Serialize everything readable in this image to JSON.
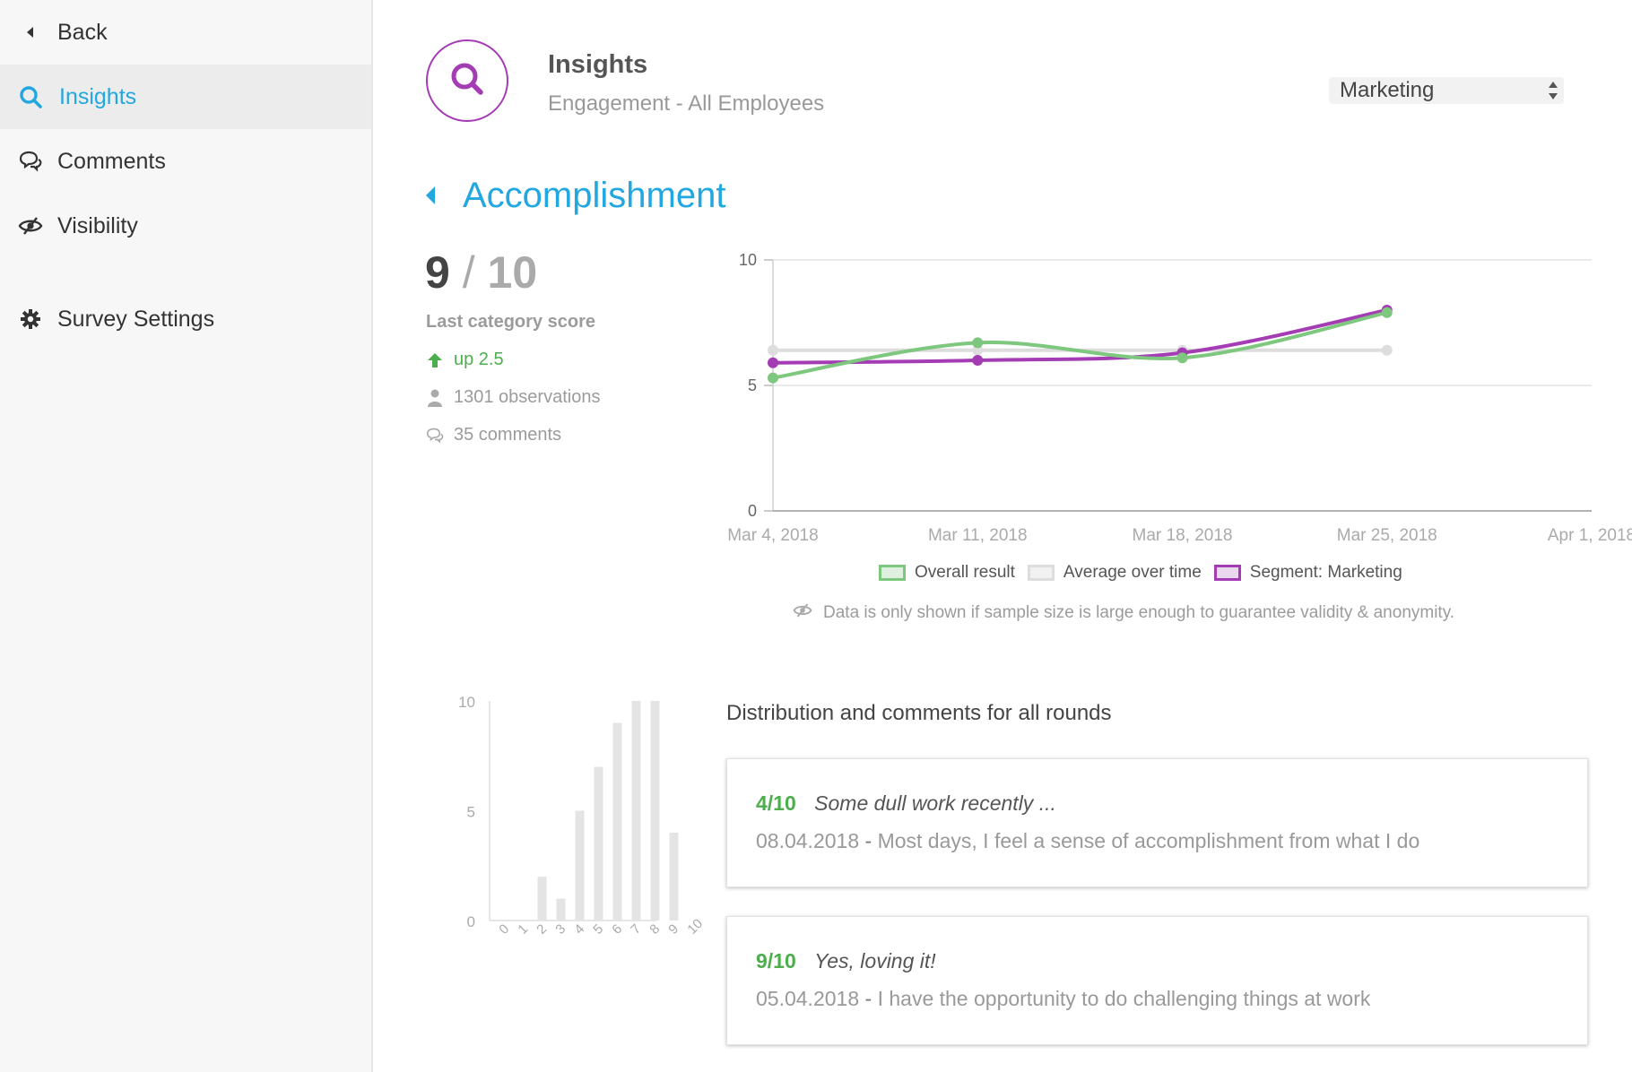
{
  "sidebar": {
    "back_label": "Back",
    "items": [
      {
        "label": "Insights",
        "icon": "search-icon",
        "active": true
      },
      {
        "label": "Comments",
        "icon": "comments-icon",
        "active": false
      },
      {
        "label": "Visibility",
        "icon": "eye-slash-icon",
        "active": false
      },
      {
        "label": "Survey Settings",
        "icon": "gear-icon",
        "active": false
      }
    ]
  },
  "header": {
    "title": "Insights",
    "subtitle": "Engagement - All Employees",
    "segment_select": {
      "selected": "Marketing"
    }
  },
  "section": {
    "title": "Accomplishment"
  },
  "score": {
    "value": "9",
    "slash": "/",
    "max": "10",
    "label": "Last category score",
    "trend": "up 2.5",
    "observations": "1301 observations",
    "comments": "35 comments"
  },
  "colors": {
    "accent": "#22a7e0",
    "purple": "#a43cb4",
    "green": "#7dc77e",
    "grey": "#dddddd",
    "positive": "#4cae4c"
  },
  "chart_data": [
    {
      "type": "line",
      "x": [
        "Mar 4, 2018",
        "Mar 11, 2018",
        "Mar 18, 2018",
        "Mar 25, 2018",
        "Apr 1, 2018"
      ],
      "ylim": [
        0,
        10
      ],
      "yticks": [
        0,
        5,
        10
      ],
      "series": [
        {
          "name": "Overall result",
          "values": [
            5.3,
            6.7,
            6.1,
            7.9,
            null
          ]
        },
        {
          "name": "Average over time",
          "values": [
            6.4,
            6.4,
            6.4,
            6.4,
            null
          ]
        },
        {
          "name": "Segment: Marketing",
          "values": [
            5.9,
            6.0,
            6.3,
            8.0,
            null
          ]
        }
      ],
      "legend": [
        "Overall result",
        "Average over time",
        "Segment: Marketing"
      ],
      "grid": true,
      "legend_position": "bottom"
    },
    {
      "type": "bar",
      "categories": [
        "0",
        "1",
        "2",
        "3",
        "4",
        "5",
        "6",
        "7",
        "8",
        "9",
        "10"
      ],
      "values": [
        0,
        0,
        2,
        1,
        5,
        7,
        9,
        10,
        10,
        4,
        0
      ],
      "ylim": [
        0,
        10
      ],
      "yticks": [
        0,
        5,
        10
      ]
    }
  ],
  "legend_labels": {
    "overall": "Overall result",
    "average": "Average over time",
    "segment": "Segment: Marketing"
  },
  "note": "Data is only shown if sample size is large enough to guarantee validity & anonymity.",
  "distribution": {
    "title": "Distribution and comments for all rounds",
    "comments": [
      {
        "score": "4/10",
        "headline": "Some dull work recently ...",
        "date": "08.04.2018",
        "question": "Most days, I feel a sense of accomplishment from what I do"
      },
      {
        "score": "9/10",
        "headline": "Yes, loving it!",
        "date": "05.04.2018",
        "question": "I have the opportunity to do challenging things at work"
      }
    ]
  }
}
